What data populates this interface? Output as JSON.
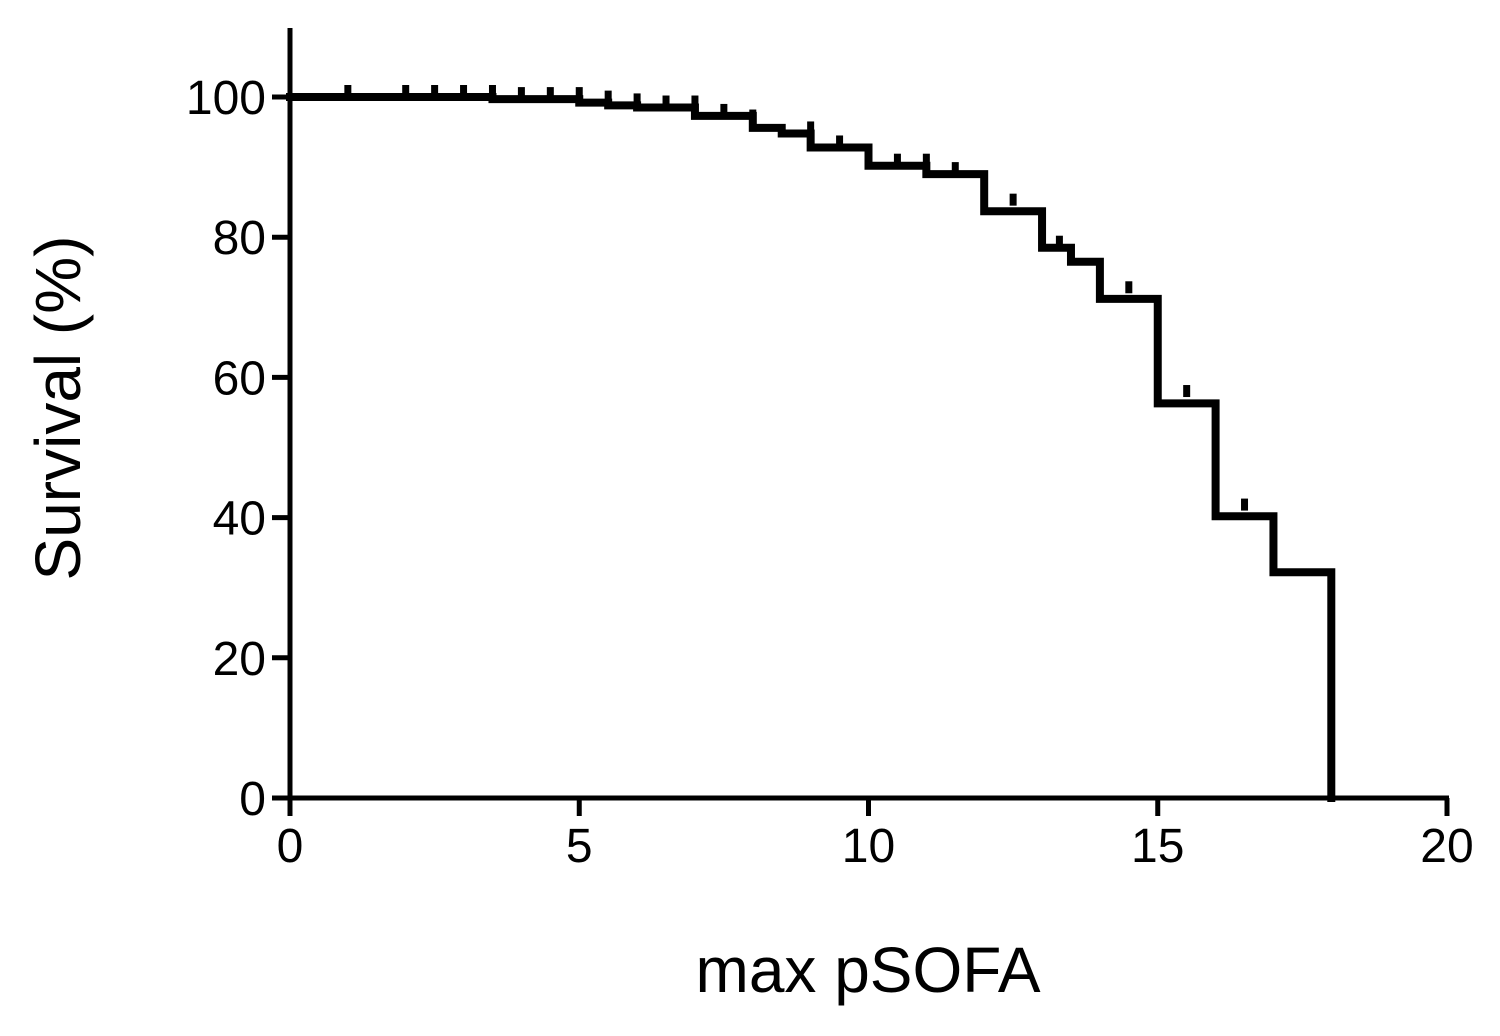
{
  "chart_data": {
    "type": "line",
    "subtype": "kaplan-meier-step",
    "title": "",
    "xlabel": "max pSOFA",
    "ylabel": "Survival (%)",
    "xlim": [
      0,
      20
    ],
    "ylim": [
      0,
      110
    ],
    "xticks": [
      0,
      5,
      10,
      15,
      20
    ],
    "yticks": [
      0,
      20,
      40,
      60,
      80,
      100
    ],
    "xtick_labels": [
      "0",
      "5",
      "10",
      "15",
      "20"
    ],
    "ytick_labels": [
      "0",
      "20",
      "40",
      "60",
      "80",
      "100"
    ],
    "grid": false,
    "legend": "none",
    "line_color": "#000000",
    "series": [
      {
        "steps": [
          {
            "x": 0,
            "y": 100
          },
          {
            "x": 3.5,
            "y": 99.7
          },
          {
            "x": 5,
            "y": 99.2
          },
          {
            "x": 5.5,
            "y": 98.8
          },
          {
            "x": 6,
            "y": 98.5
          },
          {
            "x": 7,
            "y": 97.3
          },
          {
            "x": 8,
            "y": 95.6
          },
          {
            "x": 8.5,
            "y": 94.8
          },
          {
            "x": 9,
            "y": 92.8
          },
          {
            "x": 10,
            "y": 90.2
          },
          {
            "x": 11,
            "y": 89.0
          },
          {
            "x": 12,
            "y": 83.7
          },
          {
            "x": 13,
            "y": 78.5
          },
          {
            "x": 13.5,
            "y": 76.5
          },
          {
            "x": 14,
            "y": 71.2
          },
          {
            "x": 15,
            "y": 56.3
          },
          {
            "x": 16,
            "y": 40.2
          },
          {
            "x": 17,
            "y": 32.2
          },
          {
            "x": 18,
            "y": 0
          }
        ],
        "censored": [
          {
            "x": 1.0,
            "y": 100
          },
          {
            "x": 2.0,
            "y": 100
          },
          {
            "x": 2.5,
            "y": 100
          },
          {
            "x": 3.0,
            "y": 100
          },
          {
            "x": 3.5,
            "y": 100
          },
          {
            "x": 4.0,
            "y": 99.7
          },
          {
            "x": 4.5,
            "y": 99.7
          },
          {
            "x": 5.0,
            "y": 99.7
          },
          {
            "x": 5.5,
            "y": 99.2
          },
          {
            "x": 6.0,
            "y": 98.8
          },
          {
            "x": 6.5,
            "y": 98.5
          },
          {
            "x": 7.0,
            "y": 98.5
          },
          {
            "x": 7.5,
            "y": 97.3
          },
          {
            "x": 8.0,
            "y": 96.5
          },
          {
            "x": 9.0,
            "y": 94.8
          },
          {
            "x": 9.5,
            "y": 92.8
          },
          {
            "x": 10.5,
            "y": 90.2
          },
          {
            "x": 11.0,
            "y": 90.2
          },
          {
            "x": 11.5,
            "y": 89.0
          },
          {
            "x": 12.5,
            "y": 84.5
          },
          {
            "x": 13.3,
            "y": 78.5
          },
          {
            "x": 14.5,
            "y": 72.0
          },
          {
            "x": 15.5,
            "y": 57.2
          },
          {
            "x": 16.5,
            "y": 41.0
          }
        ]
      }
    ]
  }
}
